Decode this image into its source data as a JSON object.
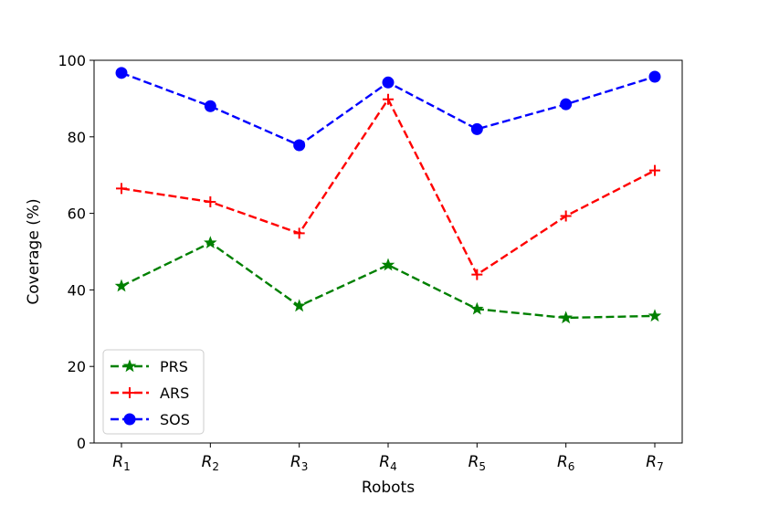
{
  "chart_data": {
    "type": "line",
    "xlabel": "Robots",
    "ylabel": "Coverage (%)",
    "categories": [
      {
        "base": "R",
        "sub": "1"
      },
      {
        "base": "R",
        "sub": "2"
      },
      {
        "base": "R",
        "sub": "3"
      },
      {
        "base": "R",
        "sub": "4"
      },
      {
        "base": "R",
        "sub": "5"
      },
      {
        "base": "R",
        "sub": "6"
      },
      {
        "base": "R",
        "sub": "7"
      }
    ],
    "ylim": [
      0,
      100
    ],
    "yticks": [
      0,
      20,
      40,
      60,
      80,
      100
    ],
    "grid": false,
    "legend_position": "lower-left",
    "series": [
      {
        "name": "PRS",
        "color": "#008000",
        "marker": "star",
        "linestyle": "dashed",
        "values": [
          41,
          52.3,
          35.8,
          46.5,
          35,
          32.7,
          33.2
        ]
      },
      {
        "name": "ARS",
        "color": "#ff0000",
        "marker": "plus",
        "linestyle": "dashed",
        "values": [
          66.5,
          63,
          54.8,
          89.8,
          44,
          59.3,
          71.2
        ]
      },
      {
        "name": "SOS",
        "color": "#0000ff",
        "marker": "circle",
        "linestyle": "dashed",
        "values": [
          96.7,
          88,
          77.8,
          94.2,
          82,
          88.5,
          95.7
        ]
      }
    ]
  }
}
